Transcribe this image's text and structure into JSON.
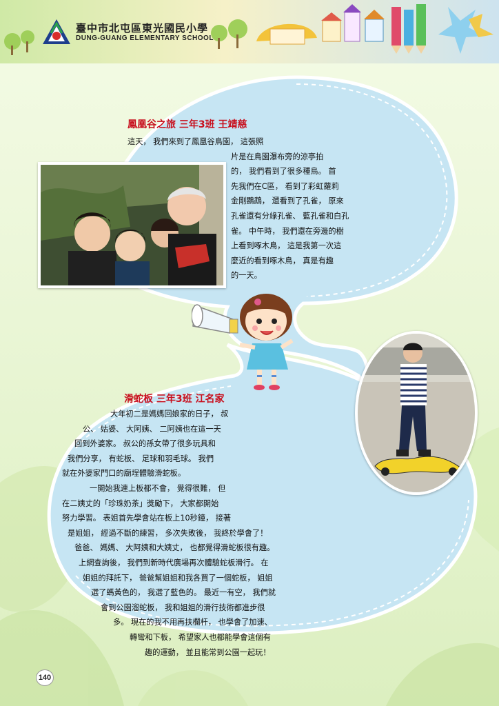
{
  "header": {
    "school_name_cn": "臺中市北屯區東光國民小學",
    "school_name_en": "DUNG-GUANG ELEMENTARY SCHOOL",
    "logo": "school-logo"
  },
  "article1": {
    "title": "鳳凰谷之旅  三年3班  王靖慈",
    "lines": [
      "這天，  我們來到了鳳凰谷鳥園，  這張照",
      "片是在鳥園瀑布旁的涼亭拍",
      "的，  我們看到了很多種鳥。  首",
      "先我們在C區，  看到了彩虹蘿莉",
      "金剛鸚鵡，  還看到了孔雀，  原來",
      "孔雀還有分綠孔雀、  藍孔雀和白孔",
      "雀。  中午時，  我們還在旁邊的樹",
      "上看到啄木鳥，  這是我第一次這",
      "麼近的看到啄木鳥，  真是有趣",
      "的一天。"
    ]
  },
  "article2": {
    "title": "滑蛇板  三年3班  江名家",
    "lines": [
      "大年初二是媽媽回娘家的日子，  叔",
      "公、  姑婆、  大阿姨、  二阿姨也在這一天",
      "回到外婆家。  叔公的孫女帶了很多玩具和",
      "我們分享，  有蛇板、  足球和羽毛球。  我們",
      "就在外婆家門口的廟埕體驗滑蛇板。",
      "一開始我連上板都不會，  覺得很難，  但",
      "在二姨丈的「珍珠奶茶」獎勵下，  大家都開始",
      "努力學習。  表姐首先學會站在板上10秒鐘，  接著",
      "是姐姐，  經過不斷的練習，  多次失敗後，  我終於學會了！",
      "爸爸、  媽媽、  大阿姨和大姨丈，  也都覺得滑蛇板很有趣。",
      "上網查詢後，  我們到新時代廣場再次體驗蛇板滑行。  在",
      "姐姐的拜託下，  爸爸幫姐姐和我各買了一個蛇板，  姐姐",
      "選了螞黃色的，  我選了藍色的。  最近一有空，  我們就",
      "會到公園溜蛇板，  我和姐姐的滑行技術都進步很",
      "多。  現在的我不用再扶欄杆，  也學會了加速、",
      "轉彎和下板，  希望家人也都能學會這個有",
      "趣的運動，  並且能常到公園一起玩！"
    ]
  },
  "page_number": "140"
}
